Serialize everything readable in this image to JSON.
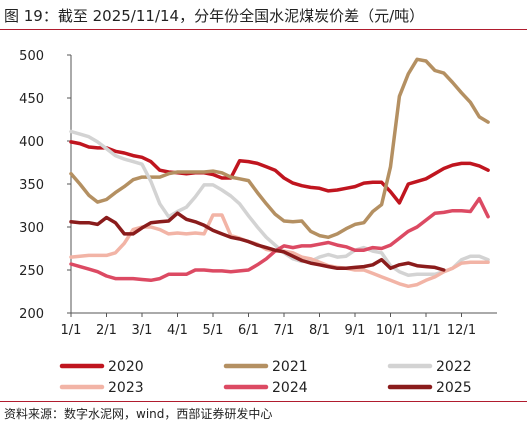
{
  "header": {
    "title": "图 19：截至 2025/11/14，分年份全国水泥煤炭价差（元/吨）"
  },
  "footer": {
    "source": "资料来源：数字水泥网，wind，西部证券研发中心"
  },
  "chart_data": {
    "type": "line",
    "title": "",
    "xlabel": "",
    "ylabel": "",
    "ylim": [
      200,
      500
    ],
    "yticks": [
      200,
      250,
      300,
      350,
      400,
      450,
      500
    ],
    "xlim": [
      1,
      13
    ],
    "xticks": [
      {
        "label": "1/1",
        "month": 1
      },
      {
        "label": "2/1",
        "month": 2
      },
      {
        "label": "3/1",
        "month": 3
      },
      {
        "label": "4/1",
        "month": 4
      },
      {
        "label": "5/1",
        "month": 5
      },
      {
        "label": "6/1",
        "month": 6
      },
      {
        "label": "7/1",
        "month": 7
      },
      {
        "label": "8/1",
        "month": 8
      },
      {
        "label": "9/1",
        "month": 9
      },
      {
        "label": "10/1",
        "month": 10
      },
      {
        "label": "11/1",
        "month": 11
      },
      {
        "label": "12/1",
        "month": 12
      }
    ],
    "grid": false,
    "legend_position": "bottom",
    "series": [
      {
        "name": "2020",
        "color": "#c0151f",
        "x": [
          1,
          1.25,
          1.5,
          1.75,
          2,
          2.25,
          2.5,
          2.75,
          3,
          3.25,
          3.5,
          3.75,
          4,
          4.25,
          4.5,
          4.75,
          5,
          5.25,
          5.5,
          5.75,
          6,
          6.25,
          6.5,
          6.75,
          7,
          7.25,
          7.5,
          7.75,
          8,
          8.25,
          8.5,
          8.75,
          9,
          9.25,
          9.5,
          9.75,
          10,
          10.25,
          10.5,
          10.75,
          11,
          11.25,
          11.5,
          11.75,
          12,
          12.25,
          12.5,
          12.75
        ],
        "y": [
          399,
          397,
          393,
          392,
          392,
          388,
          386,
          383,
          381,
          376,
          366,
          364,
          363,
          362,
          363,
          363,
          361,
          357,
          357,
          377,
          376,
          374,
          370,
          366,
          357,
          351,
          348,
          346,
          345,
          342,
          343,
          345,
          347,
          351,
          352,
          352,
          341,
          328,
          350,
          353,
          356,
          362,
          368,
          372,
          374,
          374,
          371,
          366
        ]
      },
      {
        "name": "2021",
        "color": "#b49062",
        "x": [
          1,
          1.25,
          1.5,
          1.75,
          2,
          2.25,
          2.5,
          2.75,
          3,
          3.25,
          3.5,
          3.75,
          4,
          4.25,
          4.5,
          4.75,
          5,
          5.25,
          5.5,
          5.75,
          6,
          6.25,
          6.5,
          6.75,
          7,
          7.25,
          7.5,
          7.75,
          8,
          8.25,
          8.5,
          8.75,
          9,
          9.25,
          9.5,
          9.75,
          10,
          10.25,
          10.5,
          10.75,
          11,
          11.25,
          11.5,
          11.75,
          12,
          12.25,
          12.5,
          12.75
        ],
        "y": [
          362,
          350,
          337,
          329,
          332,
          340,
          347,
          355,
          358,
          358,
          358,
          362,
          364,
          364,
          364,
          364,
          365,
          363,
          358,
          356,
          354,
          340,
          327,
          315,
          307,
          306,
          307,
          295,
          290,
          288,
          292,
          298,
          303,
          305,
          318,
          326,
          370,
          452,
          478,
          495,
          493,
          482,
          479,
          468,
          456,
          445,
          428,
          422
        ]
      },
      {
        "name": "2022",
        "color": "#d3d3d3",
        "x": [
          1,
          1.25,
          1.5,
          1.75,
          2,
          2.25,
          2.5,
          2.75,
          3,
          3.25,
          3.5,
          3.75,
          4,
          4.25,
          4.5,
          4.75,
          5,
          5.25,
          5.5,
          5.75,
          6,
          6.25,
          6.5,
          6.75,
          7,
          7.25,
          7.5,
          7.75,
          8,
          8.25,
          8.5,
          8.75,
          9,
          9.25,
          9.5,
          9.75,
          10,
          10.25,
          10.5,
          10.75,
          11,
          11.25,
          11.5,
          11.75,
          12,
          12.25,
          12.5,
          12.75
        ],
        "y": [
          411,
          408,
          405,
          399,
          391,
          383,
          379,
          376,
          373,
          353,
          327,
          312,
          318,
          323,
          335,
          349,
          349,
          343,
          336,
          327,
          313,
          300,
          288,
          279,
          270,
          263,
          260,
          260,
          265,
          268,
          265,
          266,
          273,
          276,
          272,
          270,
          255,
          248,
          244,
          245,
          245,
          245,
          248,
          252,
          262,
          266,
          266,
          262
        ]
      },
      {
        "name": "2023",
        "color": "#f2b4a6",
        "x": [
          1,
          1.25,
          1.5,
          1.75,
          2,
          2.25,
          2.5,
          2.75,
          3,
          3.25,
          3.5,
          3.75,
          4,
          4.25,
          4.5,
          4.75,
          5,
          5.25,
          5.5,
          5.75,
          6,
          6.25,
          6.5,
          6.75,
          7,
          7.25,
          7.5,
          7.75,
          8,
          8.25,
          8.5,
          8.75,
          9,
          9.25,
          9.5,
          9.75,
          10,
          10.25,
          10.5,
          10.75,
          11,
          11.25,
          11.5,
          11.75,
          12,
          12.25,
          12.5,
          12.75
        ],
        "y": [
          265,
          266,
          267,
          267,
          267,
          270,
          281,
          297,
          300,
          300,
          297,
          292,
          293,
          292,
          293,
          292,
          314,
          314,
          290,
          287,
          283,
          280,
          274,
          272,
          272,
          270,
          265,
          263,
          259,
          255,
          253,
          252,
          250,
          250,
          246,
          242,
          238,
          234,
          231,
          233,
          238,
          242,
          248,
          252,
          258,
          259,
          259,
          259
        ]
      },
      {
        "name": "2024",
        "color": "#dc4a63",
        "x": [
          1,
          1.25,
          1.5,
          1.75,
          2,
          2.25,
          2.5,
          2.75,
          3,
          3.25,
          3.5,
          3.75,
          4,
          4.25,
          4.5,
          4.75,
          5,
          5.25,
          5.5,
          5.75,
          6,
          6.25,
          6.5,
          6.75,
          7,
          7.25,
          7.5,
          7.75,
          8,
          8.25,
          8.5,
          8.75,
          9,
          9.25,
          9.5,
          9.75,
          10,
          10.25,
          10.5,
          10.75,
          11,
          11.25,
          11.5,
          11.75,
          12,
          12.25,
          12.5,
          12.75
        ],
        "y": [
          257,
          254,
          251,
          248,
          243,
          240,
          240,
          240,
          239,
          238,
          240,
          245,
          245,
          245,
          250,
          250,
          249,
          249,
          248,
          249,
          250,
          256,
          263,
          272,
          278,
          276,
          278,
          278,
          280,
          282,
          279,
          277,
          273,
          273,
          276,
          275,
          279,
          287,
          295,
          300,
          308,
          316,
          317,
          319,
          319,
          318,
          333,
          312
        ]
      },
      {
        "name": "2025",
        "color": "#8a1c1c",
        "x": [
          1,
          1.25,
          1.5,
          1.75,
          2,
          2.25,
          2.5,
          2.75,
          3,
          3.25,
          3.5,
          3.75,
          4,
          4.25,
          4.5,
          4.75,
          5,
          5.25,
          5.5,
          5.75,
          6,
          6.25,
          6.5,
          6.75,
          7,
          7.25,
          7.5,
          7.75,
          8,
          8.25,
          8.5,
          8.75,
          9,
          9.25,
          9.5,
          9.75,
          10,
          10.25,
          10.5,
          10.75,
          11,
          11.25,
          11.5
        ],
        "y": [
          306,
          305,
          305,
          303,
          311,
          305,
          292,
          292,
          299,
          305,
          306,
          307,
          316,
          309,
          306,
          302,
          296,
          292,
          288,
          286,
          283,
          279,
          276,
          273,
          271,
          266,
          261,
          258,
          256,
          254,
          252,
          252,
          253,
          254,
          256,
          262,
          252,
          256,
          258,
          255,
          254,
          253,
          250
        ]
      }
    ]
  }
}
